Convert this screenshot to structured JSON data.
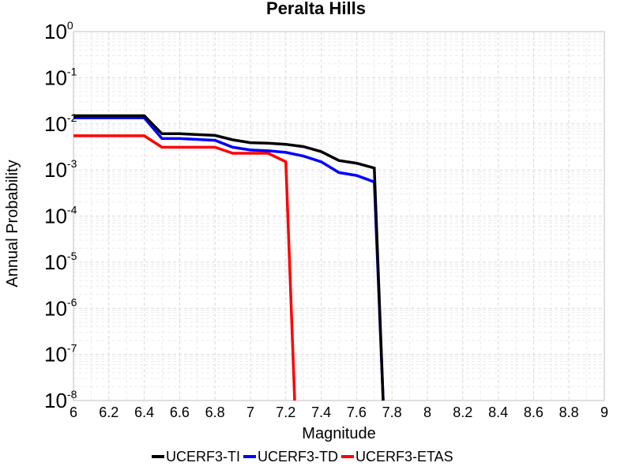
{
  "chart_data": {
    "type": "line",
    "title": "Peralta Hills",
    "xlabel": "Magnitude",
    "ylabel": "Annual Probability",
    "xlim": [
      6,
      9
    ],
    "ylim": [
      1e-08,
      1
    ],
    "yscale": "log",
    "grid": true,
    "legend_position": "bottom",
    "x_ticks": [
      "6",
      "6.2",
      "6.4",
      "6.6",
      "6.8",
      "7",
      "7.2",
      "7.4",
      "7.6",
      "7.8",
      "8",
      "8.2",
      "8.4",
      "8.6",
      "8.8",
      "9"
    ],
    "y_ticks": [
      {
        "base": "10",
        "exp": "0"
      },
      {
        "base": "10",
        "exp": "-1"
      },
      {
        "base": "10",
        "exp": "-2"
      },
      {
        "base": "10",
        "exp": "-3"
      },
      {
        "base": "10",
        "exp": "-4"
      },
      {
        "base": "10",
        "exp": "-5"
      },
      {
        "base": "10",
        "exp": "-6"
      },
      {
        "base": "10",
        "exp": "-7"
      },
      {
        "base": "10",
        "exp": "-8"
      }
    ],
    "series": [
      {
        "name": "UCERF3-TI",
        "color": "#000000",
        "x": [
          6.0,
          6.4,
          6.5,
          6.6,
          6.8,
          6.9,
          7.0,
          7.1,
          7.2,
          7.3,
          7.4,
          7.5,
          7.6,
          7.7,
          7.75
        ],
        "y": [
          0.015,
          0.015,
          0.0061,
          0.0061,
          0.0056,
          0.0045,
          0.0039,
          0.0038,
          0.0036,
          0.0032,
          0.0025,
          0.0016,
          0.0014,
          0.0011,
          1e-08
        ]
      },
      {
        "name": "UCERF3-TD",
        "color": "#0000ff",
        "x": [
          6.0,
          6.4,
          6.5,
          6.6,
          6.8,
          6.9,
          7.0,
          7.1,
          7.2,
          7.3,
          7.4,
          7.5,
          7.6,
          7.7,
          7.75
        ],
        "y": [
          0.0135,
          0.0135,
          0.0048,
          0.0048,
          0.0044,
          0.0031,
          0.0027,
          0.0026,
          0.0024,
          0.002,
          0.0015,
          0.00088,
          0.00076,
          0.00055,
          1e-08
        ]
      },
      {
        "name": "UCERF3-ETAS",
        "color": "#ff0000",
        "x": [
          6.0,
          6.4,
          6.5,
          6.6,
          6.8,
          6.9,
          7.0,
          7.1,
          7.2,
          7.25
        ],
        "y": [
          0.0055,
          0.0055,
          0.0031,
          0.0031,
          0.0031,
          0.0023,
          0.0023,
          0.0023,
          0.0015,
          1e-08
        ]
      }
    ]
  }
}
